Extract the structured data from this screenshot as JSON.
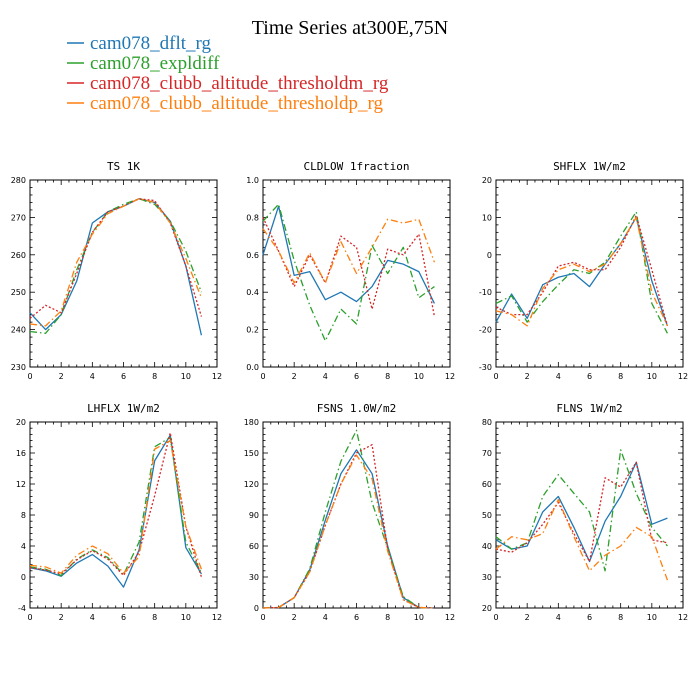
{
  "figure": {
    "title": "Time Series at300E,75N"
  },
  "legend": [
    {
      "name": "cam078_dflt_rg",
      "color": "#1f77b4",
      "dash": "solid"
    },
    {
      "name": "cam078_expldiff",
      "color": "#2ca02c",
      "dash": "dashdot"
    },
    {
      "name": "cam078_clubb_altitude_thresholdm_rg",
      "color": "#d62728",
      "dash": "dot"
    },
    {
      "name": "cam078_clubb_altitude_thresholdp_rg",
      "color": "#ff7f0e",
      "dash": "dashdot"
    }
  ],
  "chart_data": [
    {
      "type": "line",
      "title": "TS   1K",
      "x": [
        0,
        1,
        2,
        3,
        4,
        5,
        6,
        7,
        8,
        9,
        10,
        11
      ],
      "xlim": [
        0,
        12
      ],
      "xticks": [
        0,
        2,
        4,
        6,
        8,
        10,
        12
      ],
      "ylim": [
        230,
        280
      ],
      "yticks": [
        230,
        240,
        250,
        260,
        270,
        280
      ],
      "series": [
        {
          "name": "cam078_dflt_rg",
          "values": [
            244.5,
            240,
            244,
            253,
            268.5,
            271.5,
            273,
            275,
            274,
            269,
            257,
            238.5
          ]
        },
        {
          "name": "cam078_expldiff",
          "values": [
            239.5,
            239,
            244,
            256,
            266,
            271.5,
            273.5,
            275,
            273.5,
            269,
            261,
            250
          ]
        },
        {
          "name": "cam078_clubb_altitude_thresholdm_rg",
          "values": [
            243,
            246.5,
            244.5,
            255,
            266,
            271.5,
            273,
            275,
            274.5,
            268.5,
            257,
            243.5
          ]
        },
        {
          "name": "cam078_clubb_altitude_thresholdp_rg",
          "values": [
            241.5,
            241,
            245,
            258,
            265.5,
            271,
            273,
            275,
            274,
            268.5,
            259,
            248.5
          ]
        }
      ]
    },
    {
      "type": "line",
      "title": "CLDLOW   1fraction",
      "x": [
        0,
        1,
        2,
        3,
        4,
        5,
        6,
        7,
        8,
        9,
        10,
        11
      ],
      "xlim": [
        0,
        12
      ],
      "xticks": [
        0,
        2,
        4,
        6,
        8,
        10,
        12
      ],
      "ylim": [
        0,
        1.0
      ],
      "yticks": [
        0.0,
        0.2,
        0.4,
        0.6,
        0.8,
        1.0
      ],
      "series": [
        {
          "name": "cam078_dflt_rg",
          "values": [
            0.6,
            0.86,
            0.49,
            0.51,
            0.36,
            0.4,
            0.35,
            0.43,
            0.57,
            0.55,
            0.51,
            0.34
          ]
        },
        {
          "name": "cam078_expldiff",
          "values": [
            0.78,
            0.87,
            0.57,
            0.33,
            0.14,
            0.31,
            0.23,
            0.65,
            0.5,
            0.64,
            0.37,
            0.43
          ]
        },
        {
          "name": "cam078_clubb_altitude_thresholdm_rg",
          "values": [
            0.8,
            0.62,
            0.43,
            0.6,
            0.45,
            0.7,
            0.64,
            0.31,
            0.63,
            0.6,
            0.71,
            0.27
          ]
        },
        {
          "name": "cam078_clubb_altitude_thresholdp_rg",
          "values": [
            0.74,
            0.62,
            0.45,
            0.61,
            0.45,
            0.67,
            0.5,
            0.64,
            0.79,
            0.77,
            0.79,
            0.56
          ]
        }
      ]
    },
    {
      "type": "line",
      "title": "SHFLX   1W/m2",
      "x": [
        0,
        1,
        2,
        3,
        4,
        5,
        6,
        7,
        8,
        9,
        10,
        11
      ],
      "xlim": [
        0,
        12
      ],
      "xticks": [
        0,
        2,
        4,
        6,
        8,
        10,
        12
      ],
      "ylim": [
        -30,
        20
      ],
      "yticks": [
        -30,
        -20,
        -10,
        0,
        10,
        20
      ],
      "series": [
        {
          "name": "cam078_dflt_rg",
          "values": [
            -18,
            -10.5,
            -17,
            -8,
            -6,
            -5,
            -8.5,
            -2.5,
            3,
            10,
            -7,
            -19
          ]
        },
        {
          "name": "cam078_expldiff",
          "values": [
            -13,
            -11,
            -18,
            -12.5,
            -8,
            -4,
            -5,
            -2,
            5,
            11.5,
            -13,
            -21
          ]
        },
        {
          "name": "cam078_clubb_altitude_thresholdm_rg",
          "values": [
            -14,
            -16,
            -16,
            -10,
            -3,
            -2,
            -4,
            -4,
            2,
            10.5,
            -4,
            -19
          ]
        },
        {
          "name": "cam078_clubb_altitude_thresholdp_rg",
          "values": [
            -15,
            -16,
            -19,
            -9,
            -4,
            -2.5,
            -4.5,
            -2.5,
            3,
            10,
            -10,
            -19
          ]
        }
      ]
    },
    {
      "type": "line",
      "title": "LHFLX   1W/m2",
      "x": [
        0,
        1,
        2,
        3,
        4,
        5,
        6,
        7,
        8,
        9,
        10,
        11
      ],
      "xlim": [
        0,
        12
      ],
      "xticks": [
        0,
        2,
        4,
        6,
        8,
        10,
        12
      ],
      "ylim": [
        -4,
        20
      ],
      "yticks": [
        -4,
        0,
        4,
        8,
        12,
        16,
        20
      ],
      "series": [
        {
          "name": "cam078_dflt_rg",
          "values": [
            1.2,
            0.8,
            0.1,
            1.8,
            2.9,
            1.4,
            -1.3,
            3.5,
            15,
            18.3,
            3.8,
            0.4
          ]
        },
        {
          "name": "cam078_expldiff",
          "values": [
            1.3,
            1.0,
            0.2,
            2.3,
            3.5,
            2.5,
            0.3,
            4.5,
            16.8,
            18,
            4.5,
            0.5
          ]
        },
        {
          "name": "cam078_clubb_altitude_thresholdm_rg",
          "values": [
            1.2,
            0.9,
            0.4,
            2.2,
            3.4,
            2.3,
            0.2,
            3.2,
            10.5,
            18.6,
            6.5,
            0
          ]
        },
        {
          "name": "cam078_clubb_altitude_thresholdp_rg",
          "values": [
            1.5,
            1.3,
            0.5,
            2.8,
            4.0,
            3.0,
            0.5,
            2.6,
            16.5,
            17.6,
            6.5,
            1.0
          ]
        }
      ]
    },
    {
      "type": "line",
      "title": "FSNS   1.0W/m2",
      "x": [
        0,
        1,
        2,
        3,
        4,
        5,
        6,
        7,
        8,
        9,
        10,
        11
      ],
      "xlim": [
        0,
        12
      ],
      "xticks": [
        0,
        2,
        4,
        6,
        8,
        10,
        12
      ],
      "ylim": [
        0,
        180
      ],
      "yticks": [
        0,
        30,
        60,
        90,
        120,
        150,
        180
      ],
      "series": [
        {
          "name": "cam078_dflt_rg",
          "values": [
            0,
            0.5,
            10,
            37,
            85,
            130,
            153,
            130,
            60,
            10,
            0.5,
            0
          ]
        },
        {
          "name": "cam078_expldiff",
          "values": [
            0,
            0.5,
            10,
            38,
            93,
            142,
            172,
            102,
            58,
            11,
            0.5,
            0
          ]
        },
        {
          "name": "cam078_clubb_altitude_thresholdm_rg",
          "values": [
            0,
            0.5,
            10,
            35,
            80,
            120,
            150,
            158,
            57,
            8,
            0.5,
            0
          ]
        },
        {
          "name": "cam078_clubb_altitude_thresholdp_rg",
          "values": [
            0,
            0.5,
            10,
            35,
            80,
            120,
            148,
            125,
            55,
            8,
            0.5,
            0
          ]
        }
      ]
    },
    {
      "type": "line",
      "title": "FLNS   1W/m2",
      "x": [
        0,
        1,
        2,
        3,
        4,
        5,
        6,
        7,
        8,
        9,
        10,
        11
      ],
      "xlim": [
        0,
        12
      ],
      "xticks": [
        0,
        2,
        4,
        6,
        8,
        10,
        12
      ],
      "ylim": [
        20,
        80
      ],
      "yticks": [
        20,
        30,
        40,
        50,
        60,
        70,
        80
      ],
      "series": [
        {
          "name": "cam078_dflt_rg",
          "values": [
            42,
            39,
            40,
            51,
            56,
            46,
            35,
            48,
            56,
            67,
            47,
            49
          ]
        },
        {
          "name": "cam078_expldiff",
          "values": [
            43,
            39,
            41,
            56,
            63,
            57,
            51,
            32,
            71,
            57,
            46,
            40
          ]
        },
        {
          "name": "cam078_clubb_altitude_thresholdm_rg",
          "values": [
            39,
            38,
            41,
            47,
            54,
            44,
            35,
            62,
            59,
            67,
            42,
            41
          ]
        },
        {
          "name": "cam078_clubb_altitude_thresholdp_rg",
          "values": [
            39,
            43,
            42,
            44,
            55,
            43,
            32,
            37,
            40,
            46,
            43,
            29
          ]
        }
      ]
    }
  ]
}
